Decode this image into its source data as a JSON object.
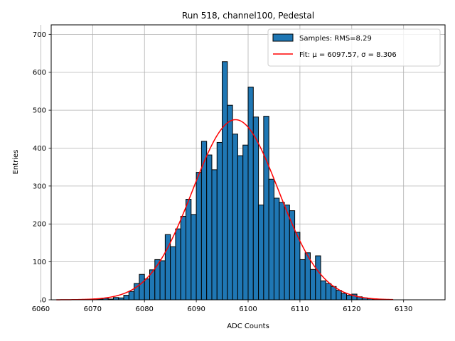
{
  "chart_data": {
    "type": "bar",
    "title": "Run 518, channel100, Pedestal",
    "xlabel": "ADC Counts",
    "ylabel": "Entries",
    "xlim": [
      6062,
      6138
    ],
    "ylim": [
      0,
      725
    ],
    "xticks": [
      6060,
      6070,
      6080,
      6090,
      6100,
      6110,
      6120,
      6130
    ],
    "yticks": [
      0,
      100,
      200,
      300,
      400,
      500,
      600,
      700
    ],
    "grid": true,
    "legend_position": "top-right",
    "bar_color": "#1f77b4",
    "fit_color": "#ff0000",
    "histogram": {
      "name": "Samples: RMS=8.29",
      "bin_width": 1,
      "bin_starts": [
        6067,
        6068,
        6069,
        6070,
        6071,
        6072,
        6073,
        6074,
        6075,
        6076,
        6077,
        6078,
        6079,
        6080,
        6081,
        6082,
        6083,
        6084,
        6085,
        6086,
        6087,
        6088,
        6089,
        6090,
        6091,
        6092,
        6093,
        6094,
        6095,
        6096,
        6097,
        6098,
        6099,
        6100,
        6101,
        6102,
        6103,
        6104,
        6105,
        6106,
        6107,
        6108,
        6109,
        6110,
        6111,
        6112,
        6113,
        6114,
        6115,
        6116,
        6117,
        6118,
        6119,
        6120,
        6121,
        6122,
        6123,
        6124,
        6125,
        6126,
        6127
      ],
      "counts": [
        0,
        1,
        0,
        1,
        2,
        4,
        2,
        6,
        5,
        12,
        22,
        43,
        67,
        55,
        79,
        106,
        103,
        172,
        140,
        187,
        220,
        265,
        225,
        336,
        418,
        382,
        343,
        415,
        628,
        513,
        437,
        380,
        408,
        561,
        482,
        250,
        484,
        318,
        268,
        257,
        250,
        235,
        178,
        106,
        124,
        80,
        116,
        50,
        43,
        35,
        25,
        17,
        12,
        15,
        8,
        5,
        3,
        1,
        1,
        0,
        0
      ]
    },
    "fit": {
      "name": "Fit: μ = 6097.57, σ = 8.306",
      "mu": 6097.57,
      "sigma": 8.306,
      "amplitude": 475,
      "x_range": [
        6063,
        6128
      ]
    }
  }
}
